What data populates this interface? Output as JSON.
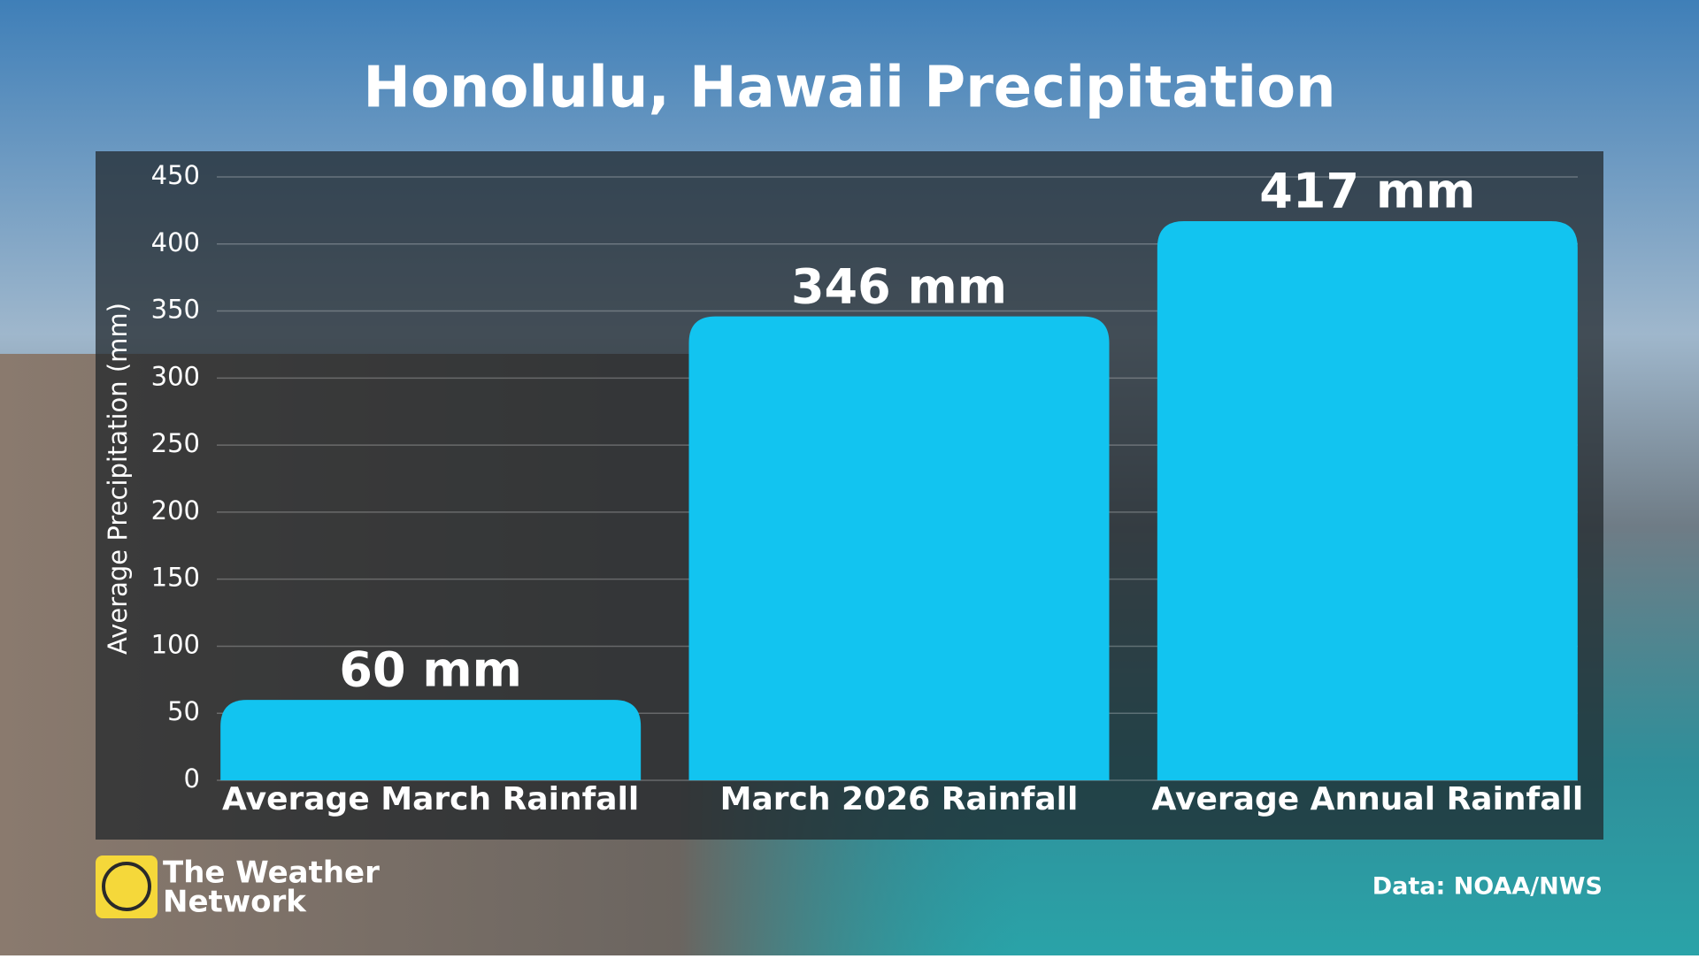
{
  "chart_data": {
    "type": "bar",
    "title": "Honolulu, Hawaii Precipitation",
    "ylabel": "Average Precipitation (mm)",
    "categories": [
      "Average March Rainfall",
      "March 2026 Rainfall",
      "Average Annual Rainfall"
    ],
    "values": [
      60,
      346,
      417
    ],
    "value_labels": [
      "60 mm",
      "346 mm",
      "417 mm"
    ],
    "color": "#12c4f0",
    "ylim": [
      0,
      450
    ],
    "yticks": [
      0,
      50,
      100,
      150,
      200,
      250,
      300,
      350,
      400,
      450
    ],
    "grid": true,
    "source": "Data: NOAA/NWS",
    "branding": [
      "The Weather",
      "Network"
    ]
  }
}
